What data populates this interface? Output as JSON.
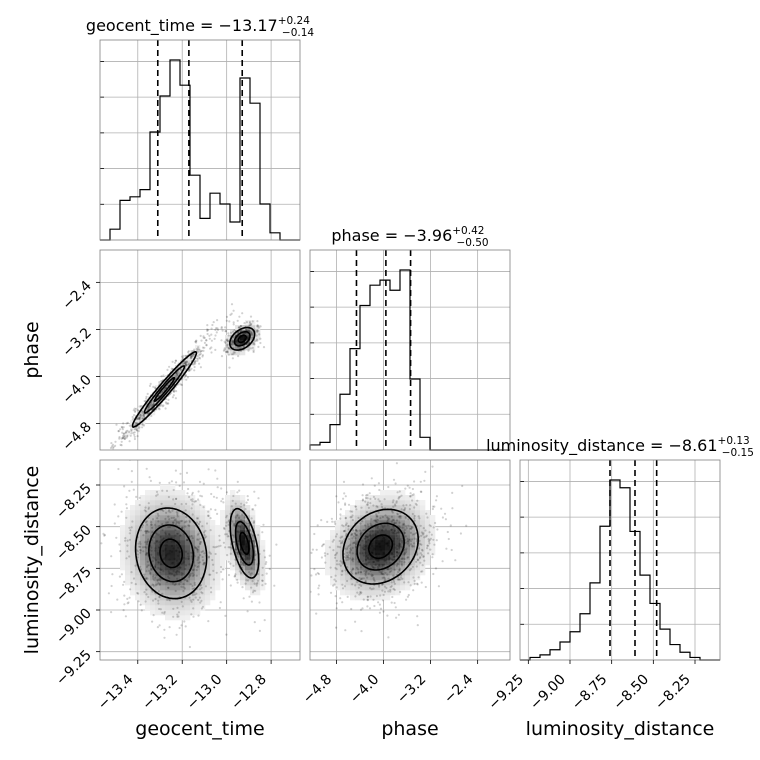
{
  "chart_data": {
    "type": "corner",
    "parameters": [
      "geocent_time",
      "phase",
      "luminosity_distance"
    ],
    "titles": [
      {
        "param": "geocent_time",
        "text": "geocent_time = −13.17",
        "sup": "+0.24",
        "sub": "−0.14"
      },
      {
        "param": "phase",
        "text": "phase = −3.96",
        "sup": "+0.42",
        "sub": "−0.50"
      },
      {
        "param": "luminosity_distance",
        "text": "luminosity_distance = −8.61",
        "sup": "+0.13",
        "sub": "−0.15"
      }
    ],
    "ranges": {
      "geocent_time": [
        -13.57,
        -12.67
      ],
      "phase": [
        -5.25,
        -1.85
      ],
      "luminosity_distance": [
        -9.3,
        -8.1
      ]
    },
    "ticks": {
      "geocent_time": [
        -13.4,
        -13.2,
        -13.0,
        -12.8
      ],
      "phase": [
        -4.8,
        -4.0,
        -3.2,
        -2.4
      ],
      "luminosity_distance": [
        -9.25,
        -9.0,
        -8.75,
        -8.5,
        -8.25
      ]
    },
    "tick_labels": {
      "geocent_time": [
        "−13.4",
        "−13.2",
        "−13.0",
        "−12.8"
      ],
      "phase": [
        "−4.8",
        "−4.0",
        "−3.2",
        "−2.4"
      ],
      "luminosity_distance": [
        "−9.25",
        "−9.00",
        "−8.75",
        "−8.50",
        "−8.25"
      ]
    },
    "quantiles": {
      "geocent_time": [
        -13.31,
        -13.17,
        -12.93
      ],
      "phase": [
        -4.46,
        -3.96,
        -3.54
      ],
      "luminosity_distance": [
        -8.76,
        -8.61,
        -8.48
      ]
    },
    "histograms": {
      "geocent_time": {
        "range": [
          -13.57,
          -12.67
        ],
        "bins": 20,
        "counts": [
          0,
          3,
          11,
          12,
          14,
          30,
          40,
          50,
          43,
          18,
          6,
          13,
          10,
          5,
          45,
          38,
          10,
          2,
          0,
          0
        ]
      },
      "phase": {
        "range": [
          -5.25,
          -1.85
        ],
        "bins": 20,
        "counts": [
          2,
          3,
          10,
          22,
          40,
          57,
          65,
          67,
          63,
          71,
          28,
          5,
          0,
          0,
          0,
          0,
          0,
          0,
          0,
          0
        ]
      },
      "luminosity_distance": {
        "range": [
          -9.3,
          -8.1
        ],
        "bins": 20,
        "counts": [
          0,
          1,
          2,
          4,
          7,
          11,
          18,
          30,
          52,
          70,
          67,
          50,
          33,
          22,
          12,
          6,
          3,
          1,
          0,
          0
        ]
      }
    },
    "clusters_2d": [
      {
        "x": "geocent_time",
        "y": "phase",
        "modes": [
          {
            "mx": -13.28,
            "my": -4.22,
            "sx": 0.09,
            "sy": 0.4,
            "rho": 0.97,
            "w": 0.75
          },
          {
            "mx": -12.93,
            "my": -3.36,
            "sx": 0.035,
            "sy": 0.12,
            "rho": 0.4,
            "w": 0.25
          }
        ]
      },
      {
        "x": "geocent_time",
        "y": "luminosity_distance",
        "modes": [
          {
            "mx": -13.25,
            "my": -8.66,
            "sx": 0.1,
            "sy": 0.17,
            "rho": -0.1,
            "w": 0.75
          },
          {
            "mx": -12.92,
            "my": -8.6,
            "sx": 0.04,
            "sy": 0.13,
            "rho": -0.5,
            "w": 0.25
          }
        ]
      },
      {
        "x": "phase",
        "y": "luminosity_distance",
        "modes": [
          {
            "mx": -4.05,
            "my": -8.62,
            "sx": 0.4,
            "sy": 0.14,
            "rho": 0.2,
            "w": 1.0
          }
        ]
      }
    ],
    "grid": true
  }
}
